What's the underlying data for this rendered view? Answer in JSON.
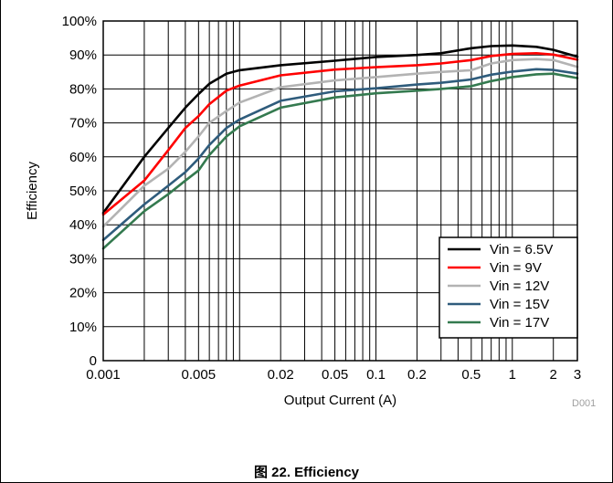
{
  "caption": {
    "prefix": "图",
    "number_title": "22. Efficiency"
  },
  "figure_code": "D001",
  "chart_data": {
    "type": "line",
    "title": "",
    "xlabel": "Output Current (A)",
    "ylabel": "Efficiency",
    "xscale": "log",
    "xlim": [
      0.001,
      3
    ],
    "ylim": [
      0,
      100
    ],
    "x_tick_values": [
      0.001,
      0.005,
      0.02,
      0.05,
      0.1,
      0.2,
      0.5,
      1,
      2,
      3
    ],
    "x_tick_labels": [
      "0.001",
      "0.005",
      "0.02",
      "0.05",
      "0.1",
      "0.2",
      "0.5",
      "1",
      "2",
      "3"
    ],
    "y_tick_values": [
      0,
      10,
      20,
      30,
      40,
      50,
      60,
      70,
      80,
      90,
      100
    ],
    "y_tick_labels": [
      "0",
      "10%",
      "20%",
      "30%",
      "40%",
      "50%",
      "60%",
      "70%",
      "80%",
      "90%",
      "100%"
    ],
    "grid": true,
    "legend_position": "bottom-right",
    "series": [
      {
        "name": "Vin = 6.5V",
        "color": "#000000",
        "x": [
          0.001,
          0.002,
          0.003,
          0.004,
          0.005,
          0.006,
          0.008,
          0.01,
          0.02,
          0.05,
          0.1,
          0.2,
          0.3,
          0.5,
          0.7,
          1,
          1.5,
          2,
          3
        ],
        "y": [
          43.5,
          60,
          68.5,
          74.5,
          78.5,
          81.5,
          84.5,
          85.5,
          87,
          88.3,
          89.4,
          90,
          90.5,
          92,
          92.6,
          92.8,
          92.4,
          91.5,
          89.5
        ]
      },
      {
        "name": "Vin = 9V",
        "color": "#ff0000",
        "x": [
          0.001,
          0.002,
          0.003,
          0.004,
          0.005,
          0.006,
          0.008,
          0.01,
          0.02,
          0.05,
          0.1,
          0.2,
          0.3,
          0.5,
          0.7,
          1,
          1.5,
          2,
          3
        ],
        "y": [
          43,
          53,
          62,
          68.5,
          72,
          75.5,
          79.5,
          81,
          84,
          85.7,
          86.4,
          87,
          87.5,
          88.5,
          89.7,
          90.3,
          90.5,
          90.1,
          88.6
        ]
      },
      {
        "name": "Vin = 12V",
        "color": "#b3b3b3",
        "x": [
          0.001,
          0.002,
          0.003,
          0.004,
          0.005,
          0.006,
          0.008,
          0.01,
          0.02,
          0.05,
          0.1,
          0.2,
          0.3,
          0.5,
          0.7,
          1,
          1.5,
          2,
          3
        ],
        "y": [
          39.5,
          51.5,
          56.5,
          61.5,
          66,
          70,
          73.5,
          76,
          80.5,
          82.5,
          83.5,
          84.5,
          85,
          85.5,
          87.5,
          88.5,
          88.8,
          88.5,
          86.5
        ]
      },
      {
        "name": "Vin = 15V",
        "color": "#2f5c7c",
        "x": [
          0.001,
          0.002,
          0.003,
          0.004,
          0.005,
          0.006,
          0.008,
          0.01,
          0.02,
          0.05,
          0.1,
          0.2,
          0.3,
          0.5,
          0.7,
          1,
          1.5,
          2,
          3
        ],
        "y": [
          35.5,
          46,
          51.5,
          55.5,
          59.5,
          63.5,
          68.5,
          71,
          76.5,
          79.3,
          80.2,
          81.3,
          81.8,
          82.8,
          84.2,
          85.1,
          85.8,
          85.6,
          84.5
        ]
      },
      {
        "name": "Vin = 17V",
        "color": "#347a4f",
        "x": [
          0.001,
          0.002,
          0.003,
          0.004,
          0.005,
          0.006,
          0.008,
          0.01,
          0.02,
          0.05,
          0.1,
          0.2,
          0.3,
          0.5,
          0.7,
          1,
          1.5,
          2,
          3
        ],
        "y": [
          33,
          44,
          49,
          53,
          56,
          60.5,
          66,
          69,
          74.5,
          77.5,
          78.7,
          79.5,
          80,
          80.8,
          82.3,
          83.5,
          84.3,
          84.5,
          83.2
        ]
      }
    ]
  }
}
